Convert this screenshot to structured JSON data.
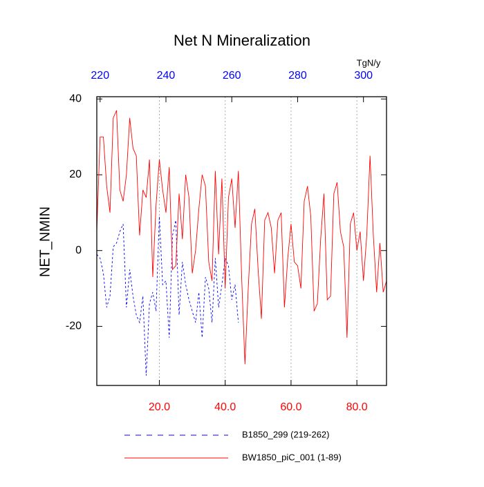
{
  "chart_data": {
    "type": "line",
    "title": "Net N Mineralization",
    "ylabel": "NET_NMIN",
    "x2label": "TgN/y",
    "xlim": [
      1,
      89
    ],
    "xticks": [
      {
        "value": 20,
        "label": "20.0"
      },
      {
        "value": 40,
        "label": "40.0"
      },
      {
        "value": 60,
        "label": "60.0"
      },
      {
        "value": 80,
        "label": "80.0"
      }
    ],
    "xtick_color": "#ff0000",
    "x2lim": [
      219,
      307
    ],
    "x2ticks": [
      220,
      240,
      260,
      280,
      300
    ],
    "x2tick_color": "#0000ff",
    "ylim": [
      -35.6,
      40.6
    ],
    "yticks": [
      40,
      20,
      0,
      -20
    ],
    "grid": true,
    "series": [
      {
        "name": "B1850_299 (219-262)",
        "color": "#0000ff",
        "dash": "dashed",
        "axis": "x2",
        "x": [
          219,
          220,
          221,
          222,
          223,
          224,
          225,
          226,
          227,
          228,
          229,
          230,
          231,
          232,
          233,
          234,
          235,
          236,
          237,
          238,
          239,
          240,
          241,
          242,
          243,
          244,
          245,
          246,
          247,
          248,
          249,
          250,
          251,
          252,
          253,
          254,
          255,
          256,
          257,
          258,
          259,
          260,
          261,
          262
        ],
        "values": [
          -1,
          -2,
          -6,
          -15,
          -12,
          1,
          2,
          5,
          7,
          -15,
          -5,
          -12,
          -17,
          -19,
          -12,
          -33,
          -14,
          -11,
          -16,
          9,
          -9,
          -8,
          -23,
          4,
          8,
          -17,
          -3,
          -9,
          -13,
          -16,
          -19,
          -11,
          -23,
          -7,
          -10,
          -19,
          -2,
          -15,
          -9,
          -2,
          -4,
          -13,
          -9,
          -19
        ]
      },
      {
        "name": "BW1850_piC_001 (1-89)",
        "color": "#ff0000",
        "dash": "solid",
        "axis": "x",
        "x": [
          1,
          2,
          3,
          4,
          5,
          6,
          7,
          8,
          9,
          10,
          11,
          12,
          13,
          14,
          15,
          16,
          17,
          18,
          19,
          20,
          21,
          22,
          23,
          24,
          25,
          26,
          27,
          28,
          29,
          30,
          31,
          32,
          33,
          34,
          35,
          36,
          37,
          38,
          39,
          40,
          41,
          42,
          43,
          44,
          45,
          46,
          47,
          48,
          49,
          50,
          51,
          52,
          53,
          54,
          55,
          56,
          57,
          58,
          59,
          60,
          61,
          62,
          63,
          64,
          65,
          66,
          67,
          68,
          69,
          70,
          71,
          72,
          73,
          74,
          75,
          76,
          77,
          78,
          79,
          80,
          81,
          82,
          83,
          84,
          85,
          86,
          87,
          88,
          89
        ],
        "values": [
          5,
          30,
          30,
          17,
          10,
          35,
          37,
          16,
          13,
          20,
          35,
          27,
          25,
          4,
          16,
          14,
          24,
          -7,
          12,
          24,
          16,
          10,
          22,
          -5,
          -4,
          15,
          3,
          20,
          14,
          -6,
          0,
          11,
          20,
          17,
          -3,
          -8,
          21,
          -1,
          19,
          -10,
          14,
          19,
          6,
          21,
          -7,
          -30,
          -10,
          7,
          11,
          -5,
          -18,
          8,
          10,
          6,
          -6,
          8,
          10,
          -15,
          -2,
          7,
          -3,
          -4,
          -10,
          13,
          17,
          9,
          -16,
          -14,
          3,
          15,
          -13,
          -12,
          15,
          18,
          5,
          1,
          -23,
          7,
          10,
          0,
          5,
          -8,
          4,
          25,
          4,
          -11,
          2,
          -11,
          -8
        ]
      }
    ]
  }
}
